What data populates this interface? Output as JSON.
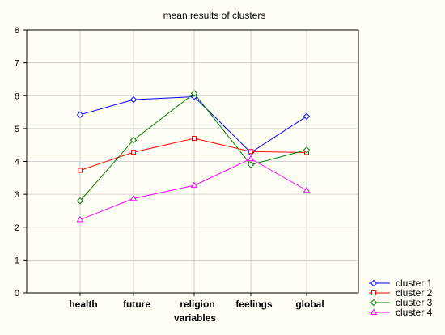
{
  "chart_data": {
    "type": "line",
    "title": "mean results of clusters",
    "xlabel": "variables",
    "ylabel": "",
    "categories": [
      "health",
      "future",
      "religion",
      "feelings",
      "global"
    ],
    "ylim": [
      0,
      8
    ],
    "yticks": [
      0,
      1,
      2,
      3,
      4,
      5,
      6,
      7,
      8
    ],
    "grid": true,
    "legend_position": "bottom-right",
    "series": [
      {
        "name": "cluster 1",
        "color": "#0000ff",
        "marker": "diamond",
        "values": [
          5.42,
          5.88,
          5.97,
          4.27,
          5.37
        ]
      },
      {
        "name": "cluster 2",
        "color": "#ff0000",
        "marker": "square",
        "values": [
          3.73,
          4.28,
          4.7,
          4.3,
          4.27
        ]
      },
      {
        "name": "cluster 3",
        "color": "#008000",
        "marker": "diamond",
        "values": [
          2.8,
          4.65,
          6.07,
          3.9,
          4.35
        ]
      },
      {
        "name": "cluster 4",
        "color": "#ff00ff",
        "marker": "triangle",
        "values": [
          2.23,
          2.87,
          3.27,
          4.08,
          3.12
        ]
      }
    ]
  }
}
